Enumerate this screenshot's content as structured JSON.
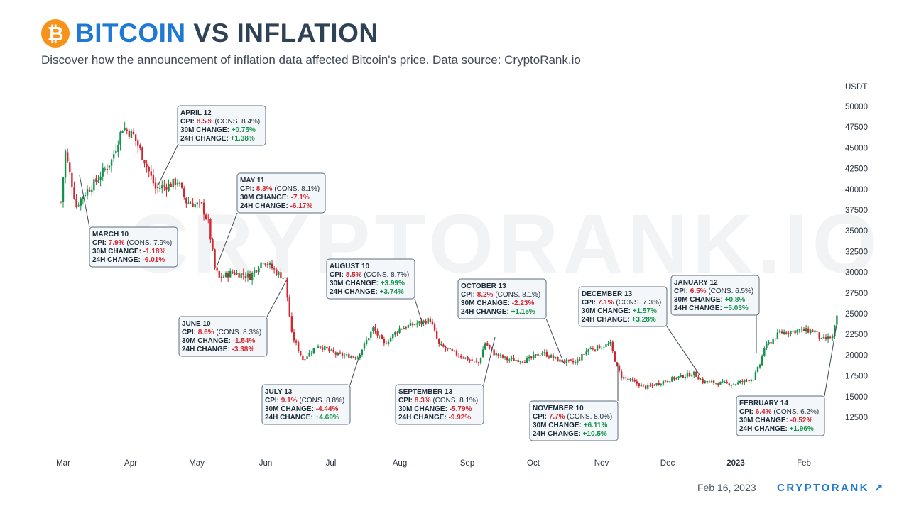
{
  "header": {
    "logo_symbol": "₿",
    "title_part1": "BITCOIN",
    "title_part2": "VS INFLATION",
    "subtitle": "Discover how the announcement of inflation data affected Bitcoin's price. Data source: CryptoRank.io"
  },
  "footer": {
    "date": "Feb 16, 2023",
    "brand": "CRYPTORANK ↗"
  },
  "watermark": "CRYPTORANK.IO",
  "colors": {
    "up": "#12924a",
    "down": "#d2262f",
    "accent": "#1f78d1",
    "logo": "#f7931a"
  },
  "chart_data": {
    "type": "candlestick",
    "ylabel": "USDT",
    "ylim": [
      12500,
      50000
    ],
    "yticks": [
      12500,
      15000,
      17500,
      20000,
      22500,
      25000,
      27500,
      30000,
      32500,
      35000,
      37500,
      40000,
      42500,
      45000,
      47500,
      50000
    ],
    "xticks": [
      {
        "label": "Mar",
        "month": 0
      },
      {
        "label": "Apr",
        "month": 1
      },
      {
        "label": "May",
        "month": 2
      },
      {
        "label": "Jun",
        "month": 3
      },
      {
        "label": "Jul",
        "month": 4
      },
      {
        "label": "Aug",
        "month": 5
      },
      {
        "label": "Sep",
        "month": 6
      },
      {
        "label": "Oct",
        "month": 7
      },
      {
        "label": "Nov",
        "month": 8
      },
      {
        "label": "Dec",
        "month": 9
      },
      {
        "label": "2023",
        "month": 10,
        "bold": true
      },
      {
        "label": "Feb",
        "month": 11
      }
    ],
    "price_path": [
      [
        "2022-02-28",
        38500
      ],
      [
        "2022-03-02",
        44500
      ],
      [
        "2022-03-07",
        38000
      ],
      [
        "2022-03-10",
        39300
      ],
      [
        "2022-03-16",
        41000
      ],
      [
        "2022-03-23",
        43500
      ],
      [
        "2022-03-28",
        47500
      ],
      [
        "2022-04-02",
        46500
      ],
      [
        "2022-04-07",
        43500
      ],
      [
        "2022-04-12",
        40100
      ],
      [
        "2022-04-18",
        40500
      ],
      [
        "2022-04-22",
        41000
      ],
      [
        "2022-04-26",
        38500
      ],
      [
        "2022-05-03",
        38000
      ],
      [
        "2022-05-06",
        36000
      ],
      [
        "2022-05-09",
        30500
      ],
      [
        "2022-05-11",
        29300
      ],
      [
        "2022-05-17",
        30000
      ],
      [
        "2022-05-25",
        29500
      ],
      [
        "2022-05-31",
        31500
      ],
      [
        "2022-06-06",
        30000
      ],
      [
        "2022-06-10",
        29200
      ],
      [
        "2022-06-13",
        22500
      ],
      [
        "2022-06-18",
        19500
      ],
      [
        "2022-06-25",
        21200
      ],
      [
        "2022-07-04",
        20000
      ],
      [
        "2022-07-13",
        19800
      ],
      [
        "2022-07-20",
        23200
      ],
      [
        "2022-07-25",
        21300
      ],
      [
        "2022-08-01",
        23200
      ],
      [
        "2022-08-10",
        23900
      ],
      [
        "2022-08-15",
        24300
      ],
      [
        "2022-08-19",
        21200
      ],
      [
        "2022-08-27",
        20100
      ],
      [
        "2022-09-06",
        19000
      ],
      [
        "2022-09-09",
        21500
      ],
      [
        "2022-09-13",
        20200
      ],
      [
        "2022-09-19",
        19500
      ],
      [
        "2022-09-28",
        19400
      ],
      [
        "2022-10-05",
        20300
      ],
      [
        "2022-10-13",
        19300
      ],
      [
        "2022-10-20",
        19100
      ],
      [
        "2022-10-26",
        20700
      ],
      [
        "2022-11-05",
        21300
      ],
      [
        "2022-11-08",
        18500
      ],
      [
        "2022-11-10",
        17400
      ],
      [
        "2022-11-21",
        16100
      ],
      [
        "2022-12-01",
        17000
      ],
      [
        "2022-12-13",
        17800
      ],
      [
        "2022-12-17",
        16800
      ],
      [
        "2022-12-31",
        16500
      ],
      [
        "2023-01-09",
        17200
      ],
      [
        "2023-01-12",
        18900
      ],
      [
        "2023-01-14",
        20900
      ],
      [
        "2023-01-21",
        22700
      ],
      [
        "2023-01-30",
        23000
      ],
      [
        "2023-02-06",
        22900
      ],
      [
        "2023-02-09",
        21800
      ],
      [
        "2023-02-14",
        22200
      ],
      [
        "2023-02-16",
        24500
      ]
    ],
    "annotations": [
      {
        "date": "MARCH 10",
        "cpi": "7.9%",
        "cons": "(CONS. 7.9%)",
        "m30": "-1.18%",
        "h24": "-6.01%"
      },
      {
        "date": "APRIL 12",
        "cpi": "8.5%",
        "cons": "(CONS. 8.4%)",
        "m30": "+0.75%",
        "h24": "+1.38%"
      },
      {
        "date": "MAY 11",
        "cpi": "8.3%",
        "cons": "(CONS. 8.1%)",
        "m30": "-7.1%",
        "h24": "-6.17%"
      },
      {
        "date": "JUNE 10",
        "cpi": "8.6%",
        "cons": "(CONS. 8.3%)",
        "m30": "-1.54%",
        "h24": "-3.38%"
      },
      {
        "date": "JULY 13",
        "cpi": "9.1%",
        "cons": "(CONS. 8.8%)",
        "m30": "-4.44%",
        "h24": "+4.69%"
      },
      {
        "date": "AUGUST 10",
        "cpi": "8.5%",
        "cons": "(CONS. 8.7%)",
        "m30": "+3.99%",
        "h24": "+3.74%"
      },
      {
        "date": "SEPTEMBER 13",
        "cpi": "8.3%",
        "cons": "(CONS. 8.1%)",
        "m30": "-5.79%",
        "h24": "-9.92%"
      },
      {
        "date": "OCTOBER 13",
        "cpi": "8.2%",
        "cons": "(CONS. 8.1%)",
        "m30": "-2.23%",
        "h24": "+1.15%"
      },
      {
        "date": "NOVEMBER 10",
        "cpi": "7.7%",
        "cons": "(CONS. 8.0%)",
        "m30": "+6.11%",
        "h24": "+10.5%"
      },
      {
        "date": "DECEMBER 13",
        "cpi": "7.1%",
        "cons": "(CONS. 7.3%)",
        "m30": "+1.57%",
        "h24": "+3.28%"
      },
      {
        "date": "JANUARY 12",
        "cpi": "6.5%",
        "cons": "(CONS. 6.5%)",
        "m30": "+0.8%",
        "h24": "+5.03%"
      },
      {
        "date": "FEBRUARY 14",
        "cpi": "6.4%",
        "cons": "(CONS. 6.2%)",
        "m30": "-0.52%",
        "h24": "+1.96%"
      }
    ],
    "labels": {
      "cpi": "CPI:",
      "m30": "30M CHANGE:",
      "h24": "24H CHANGE:"
    }
  }
}
